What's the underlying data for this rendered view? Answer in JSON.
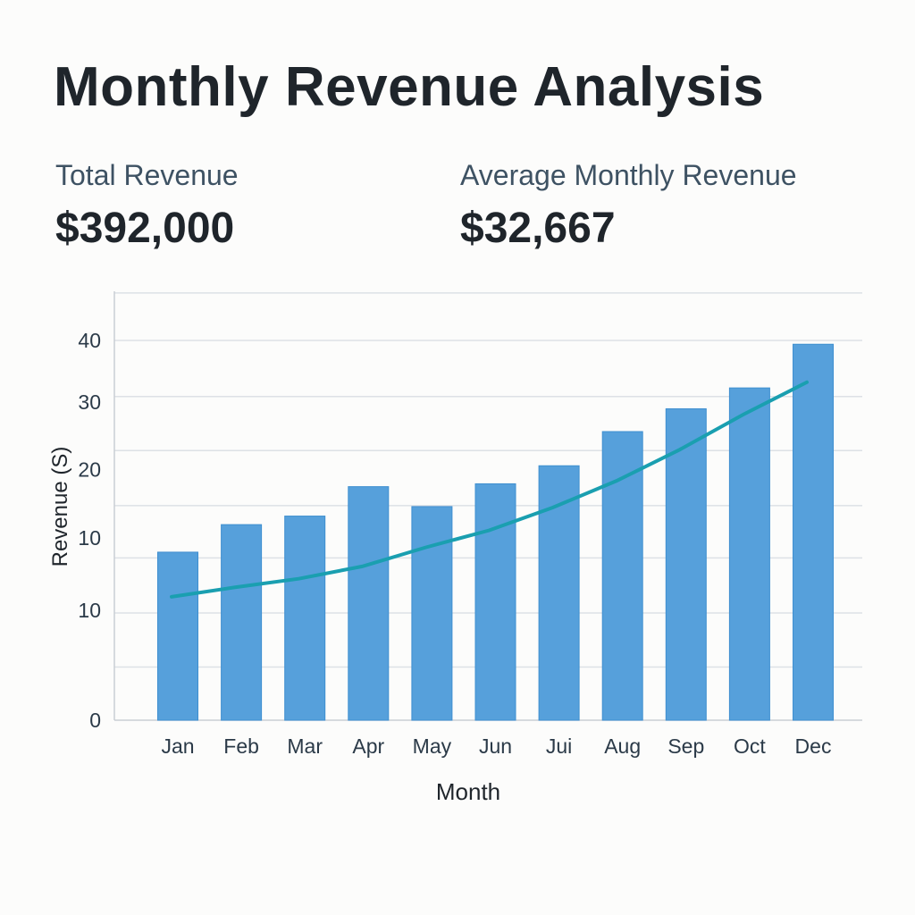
{
  "header": {
    "title": "Monthly Revenue Analysis"
  },
  "stats": [
    {
      "label": "Total Revenue",
      "value": "$392,000"
    },
    {
      "label": "Average Monthly Revenue",
      "value": "$32,667"
    }
  ],
  "colors": {
    "bar": "#56a0db",
    "trend": "#1a9fb0",
    "grid": "#dde1e6",
    "text": "#2b3a48"
  },
  "chart_data": {
    "type": "bar",
    "title": "",
    "xlabel": "Month",
    "ylabel": "Revenue (S)",
    "ylim": [
      0,
      45
    ],
    "grid": true,
    "categories": [
      "Jan",
      "Feb",
      "Mar",
      "Apr",
      "May",
      "Jun",
      "Jui",
      "Aug",
      "Sep",
      "Oct",
      "Dec"
    ],
    "values": [
      17.7,
      20.6,
      21.5,
      24.6,
      22.5,
      24.9,
      26.8,
      30.4,
      32.8,
      35.0,
      39.6
    ],
    "trend_line": [
      13.0,
      14.0,
      14.9,
      16.2,
      18.2,
      20.0,
      22.4,
      25.2,
      28.5,
      32.2,
      35.6
    ],
    "gridlines": [
      45,
      40,
      34.1,
      28.4,
      22.6,
      17.1,
      11.3,
      5.6
    ],
    "y_tick_labels": [
      {
        "label": "40",
        "at": 40
      },
      {
        "label": "30",
        "at": 33.5
      },
      {
        "label": "20",
        "at": 26.4
      },
      {
        "label": "10",
        "at": 19.2
      },
      {
        "label": "10",
        "at": 11.6
      },
      {
        "label": "0",
        "at": 0
      }
    ]
  }
}
